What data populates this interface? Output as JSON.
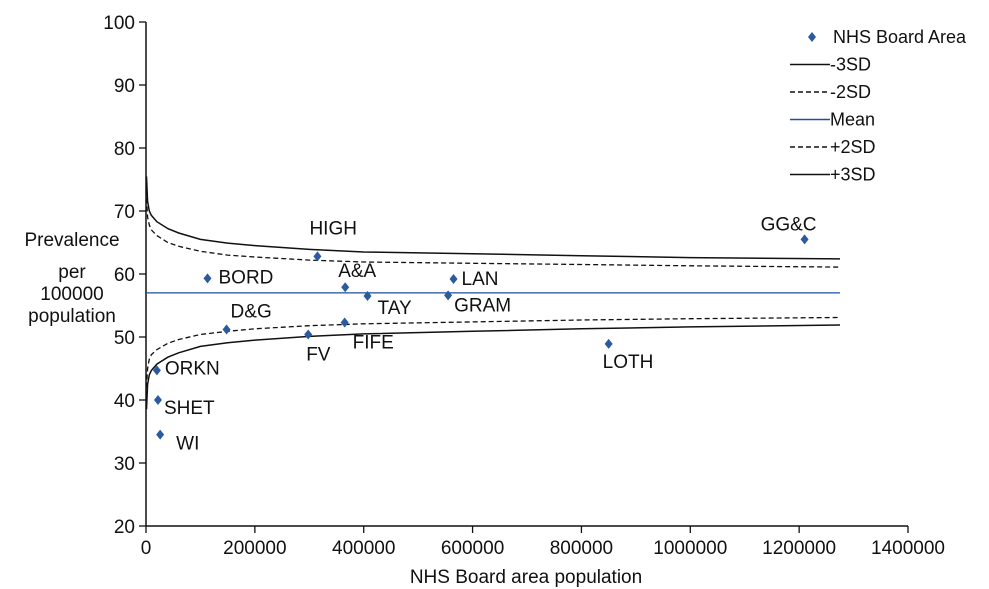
{
  "chart_data": {
    "type": "scatter",
    "title": "",
    "xlabel": "NHS Board area population",
    "ylabel_lines": [
      "Prevalence",
      "per",
      "100000",
      "population"
    ],
    "xlim": [
      0,
      1400000
    ],
    "ylim": [
      20,
      100
    ],
    "x_ticks": [
      0,
      200000,
      400000,
      600000,
      800000,
      1000000,
      1200000,
      1400000
    ],
    "x_tick_labels": [
      "0",
      "200000",
      "400000",
      "600000",
      "800000",
      "1000000",
      "1200000",
      "1400000"
    ],
    "y_ticks": [
      20,
      30,
      40,
      50,
      60,
      70,
      80,
      90,
      100
    ],
    "y_tick_labels": [
      "20",
      "30",
      "40",
      "50",
      "60",
      "70",
      "80",
      "90",
      "100"
    ],
    "grid": false,
    "legend_position": "top-right",
    "legend": [
      {
        "label": "NHS Board Area",
        "kind": "marker"
      },
      {
        "label": "-3SD",
        "kind": "solid"
      },
      {
        "label": "-2SD",
        "kind": "dashed"
      },
      {
        "label": "Mean",
        "kind": "blue"
      },
      {
        "label": "+2SD",
        "kind": "dashed"
      },
      {
        "label": "+3SD",
        "kind": "solid"
      }
    ],
    "points": [
      {
        "label": "GG&C",
        "x": 1210000,
        "y": 65.5
      },
      {
        "label": "HIGH",
        "x": 315000,
        "y": 62.8
      },
      {
        "label": "BORD",
        "x": 113000,
        "y": 59.3
      },
      {
        "label": "A&A",
        "x": 366000,
        "y": 57.9
      },
      {
        "label": "LAN",
        "x": 565000,
        "y": 59.2
      },
      {
        "label": "TAY",
        "x": 407000,
        "y": 56.5
      },
      {
        "label": "GRAM",
        "x": 555000,
        "y": 56.6
      },
      {
        "label": "D&G",
        "x": 148000,
        "y": 51.2
      },
      {
        "label": "FV",
        "x": 298000,
        "y": 50.4
      },
      {
        "label": "FIFE",
        "x": 365000,
        "y": 52.3
      },
      {
        "label": "LOTH",
        "x": 850000,
        "y": 48.9
      },
      {
        "label": "ORKN",
        "x": 20000,
        "y": 44.7
      },
      {
        "label": "SHET",
        "x": 22000,
        "y": 40.0
      },
      {
        "label": "WI",
        "x": 26000,
        "y": 34.5
      }
    ],
    "mean": 57.0,
    "limit_curves": {
      "x": [
        1000,
        3000,
        6000,
        10000,
        20000,
        40000,
        60000,
        100000,
        150000,
        200000,
        300000,
        400000,
        600000,
        800000,
        1000000,
        1275000
      ],
      "plus3": [
        75.5,
        71.5,
        70.0,
        69.3,
        68.3,
        67.2,
        66.5,
        65.5,
        64.9,
        64.5,
        63.9,
        63.5,
        63.2,
        62.9,
        62.6,
        62.4
      ],
      "plus2": [
        72.0,
        69.0,
        67.8,
        67.0,
        66.1,
        65.0,
        64.4,
        63.6,
        63.0,
        62.7,
        62.2,
        61.9,
        61.7,
        61.5,
        61.3,
        61.1
      ],
      "minus2": [
        42.0,
        45.0,
        46.5,
        47.2,
        48.0,
        49.0,
        49.6,
        50.4,
        50.9,
        51.3,
        51.8,
        52.1,
        52.4,
        52.7,
        52.9,
        53.1
      ],
      "minus3": [
        38.5,
        42.5,
        44.0,
        44.7,
        45.7,
        46.8,
        47.5,
        48.5,
        49.1,
        49.5,
        50.1,
        50.5,
        50.9,
        51.3,
        51.6,
        51.9
      ]
    },
    "colors": {
      "marker": "#2b5aa0",
      "mean": "#1f4f9f",
      "line": "#111111"
    }
  }
}
